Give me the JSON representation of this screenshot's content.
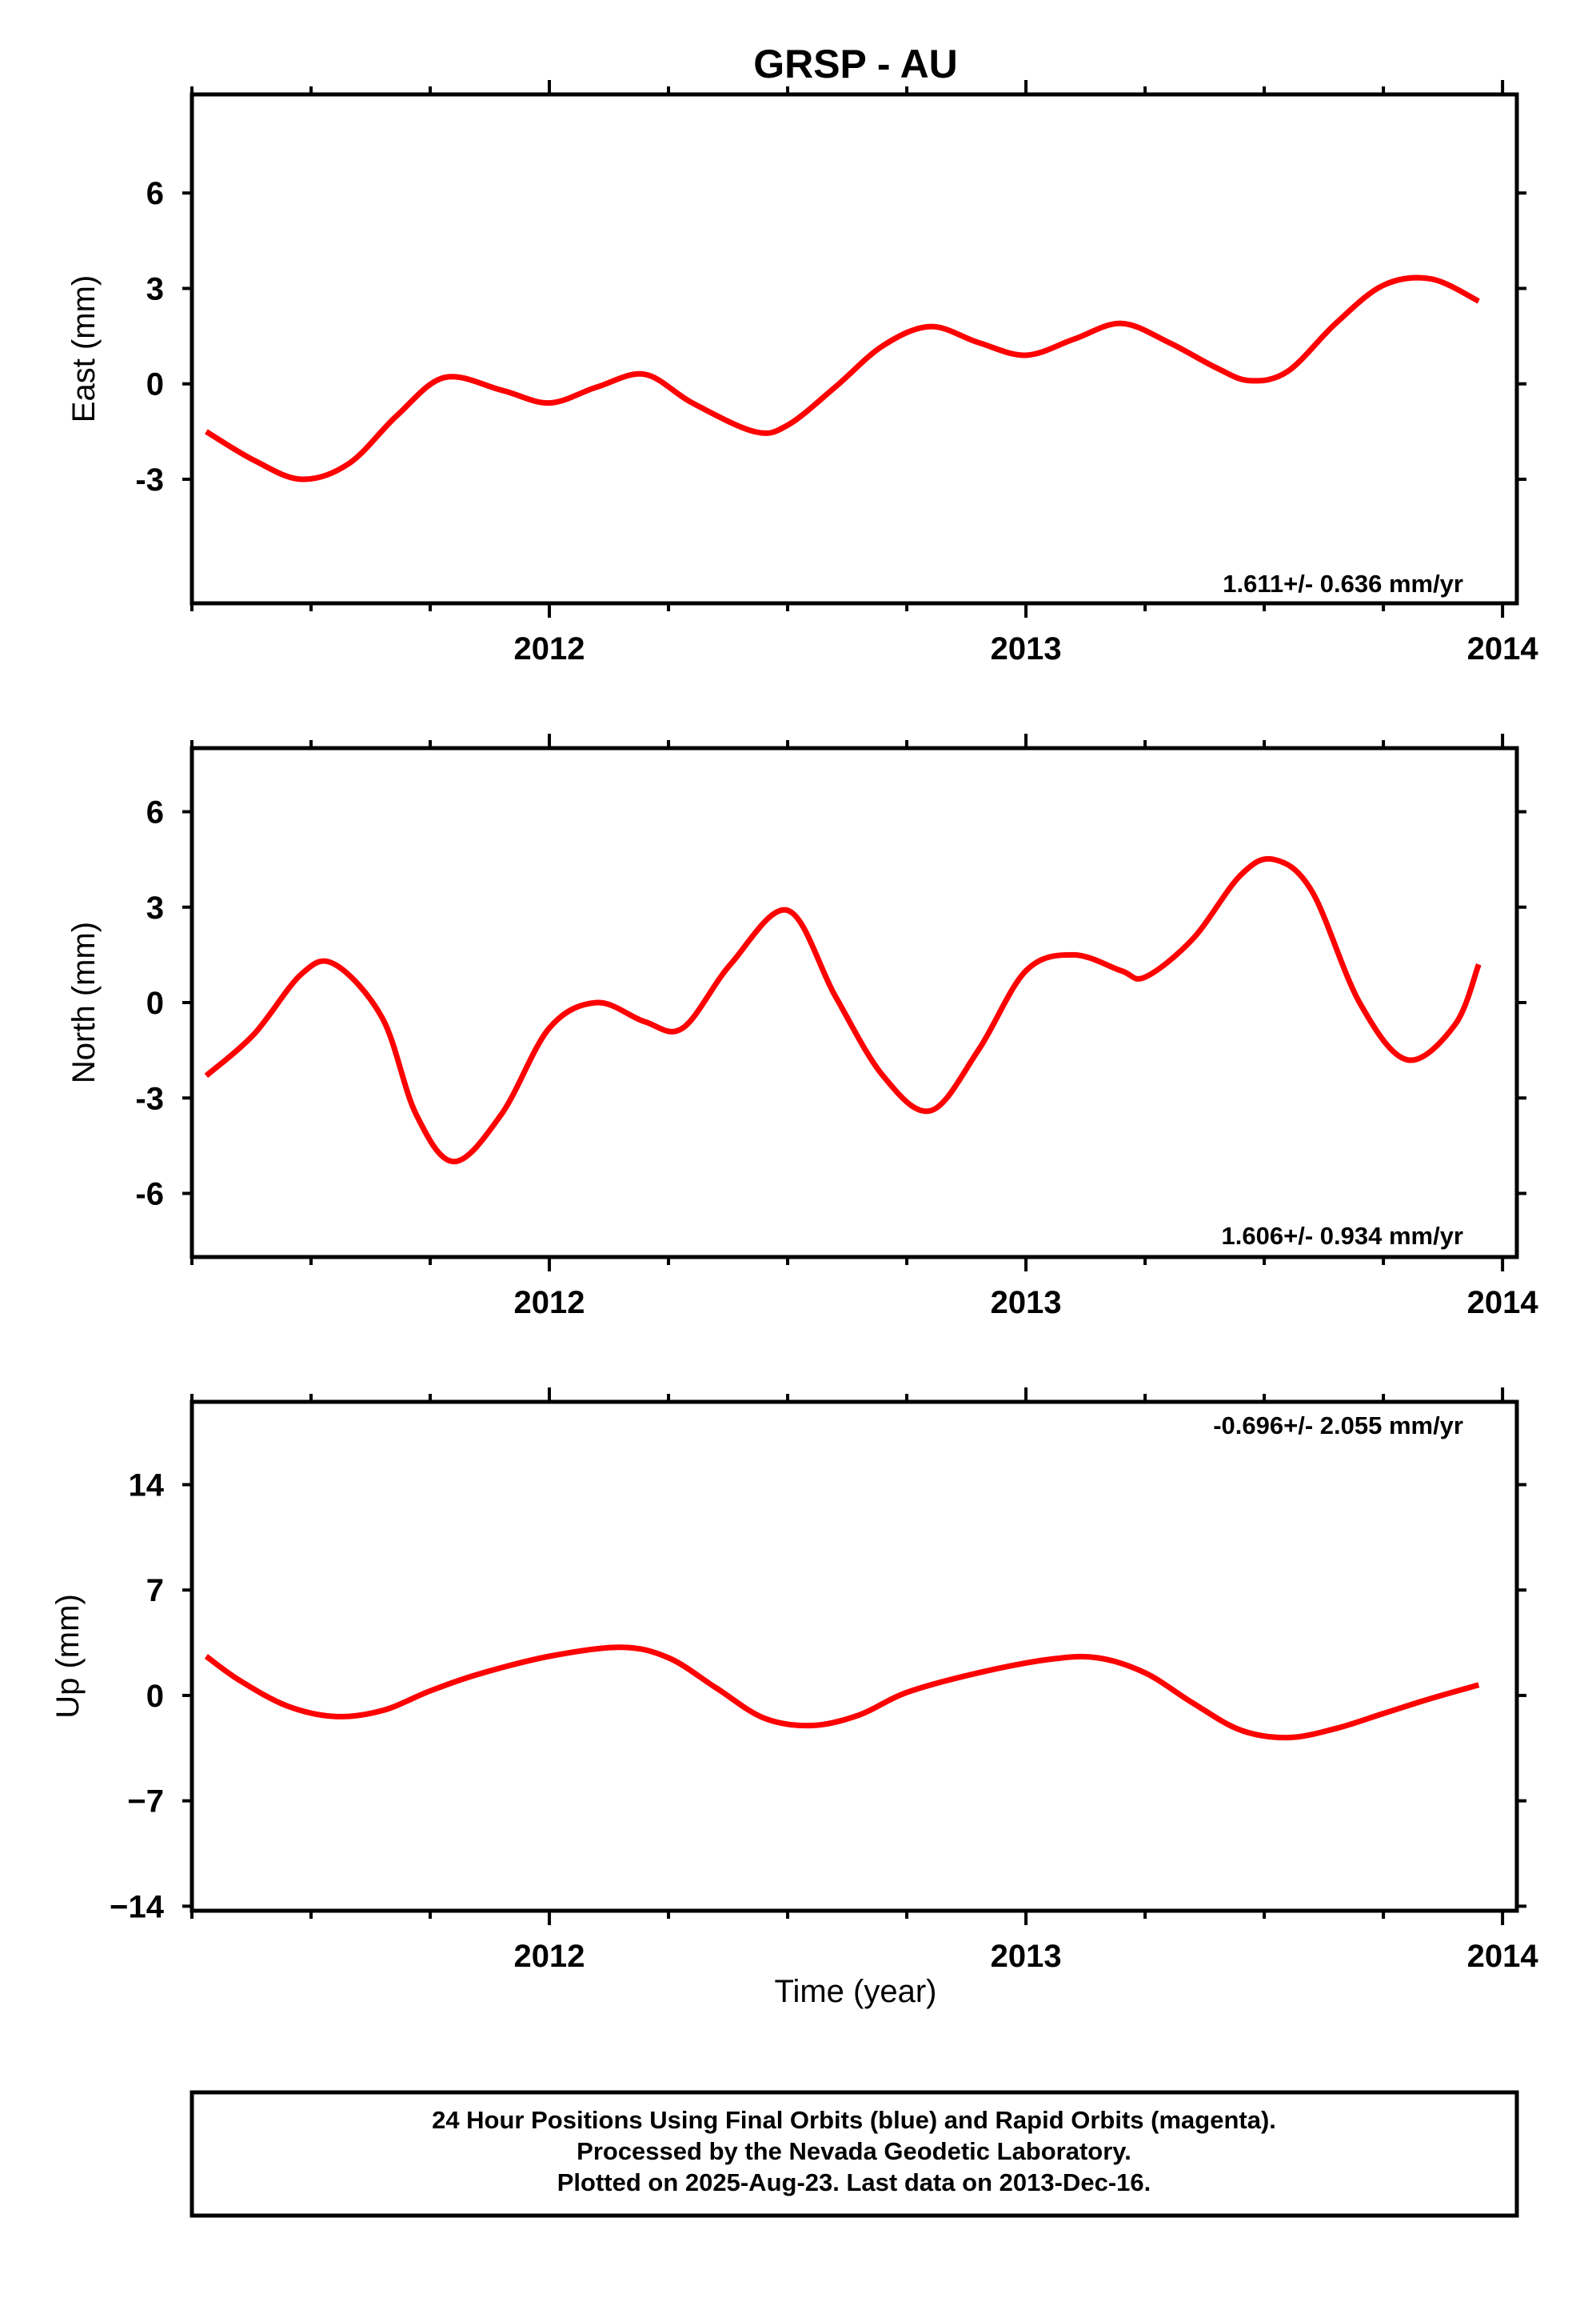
{
  "title": "GRSP - AU",
  "x_axis_label": "Time (year)",
  "footer": {
    "line1": "24 Hour Positions Using Final Orbits (blue) and Rapid Orbits (magenta).",
    "line2": "Processed by the Nevada Geodetic Laboratory.",
    "line3": "Plotted on 2025-Aug-23. Last data on 2013-Dec-16."
  },
  "colors": {
    "points": "#0000ff",
    "fit": "#ff0000",
    "axes": "#000000",
    "background": "#ffffff"
  },
  "chart_data": [
    {
      "type": "scatter",
      "ylabel": "East (mm)",
      "xlim": [
        2011.25,
        2014.03
      ],
      "ylim": [
        -6.9,
        9.1
      ],
      "x_ticks": [
        2012,
        2013,
        2014
      ],
      "x_tick_labels": [
        "2012",
        "2013",
        "2014"
      ],
      "y_ticks": [
        -3,
        0,
        3,
        6
      ],
      "y_tick_labels": [
        "-3",
        "0",
        "3",
        "6"
      ],
      "rate_label": "1.611+/- 0.636 mm/yr",
      "fit_curve": {
        "x": [
          2011.28,
          2011.38,
          2011.48,
          2011.58,
          2011.68,
          2011.78,
          2011.9,
          2012.0,
          2012.1,
          2012.2,
          2012.3,
          2012.43,
          2012.5,
          2012.6,
          2012.7,
          2012.8,
          2012.9,
          2013.0,
          2013.1,
          2013.2,
          2013.3,
          2013.4,
          2013.47,
          2013.55,
          2013.65,
          2013.75,
          2013.85,
          2013.95
        ],
        "y": [
          -1.5,
          -2.4,
          -3.0,
          -2.5,
          -1.0,
          0.2,
          -0.2,
          -0.6,
          -0.1,
          0.3,
          -0.6,
          -1.5,
          -1.3,
          -0.1,
          1.2,
          1.8,
          1.3,
          0.9,
          1.4,
          1.9,
          1.3,
          0.5,
          0.1,
          0.4,
          1.9,
          3.1,
          3.3,
          2.6
        ]
      },
      "series": [
        {
          "x": [],
          "y": []
        }
      ]
    },
    {
      "type": "scatter",
      "ylabel": "North (mm)",
      "xlim": [
        2011.25,
        2014.03
      ],
      "ylim": [
        -8.0,
        8.0
      ],
      "x_ticks": [
        2012,
        2013,
        2014
      ],
      "x_tick_labels": [
        "2012",
        "2013",
        "2014"
      ],
      "y_ticks": [
        -6,
        -3,
        0,
        3,
        6
      ],
      "y_tick_labels": [
        "-6",
        "-3",
        "0",
        "3",
        "6"
      ],
      "rate_label": "1.606+/- 0.934 mm/yr",
      "fit_curve": {
        "x": [
          2011.28,
          2011.38,
          2011.48,
          2011.55,
          2011.65,
          2011.72,
          2011.8,
          2011.9,
          2012.0,
          2012.1,
          2012.2,
          2012.28,
          2012.38,
          2012.5,
          2012.6,
          2012.7,
          2012.8,
          2012.9,
          2013.0,
          2013.1,
          2013.2,
          2013.25,
          2013.35,
          2013.45,
          2013.52,
          2013.6,
          2013.7,
          2013.8,
          2013.9,
          2013.95
        ],
        "y": [
          -2.3,
          -1.0,
          0.9,
          1.2,
          -0.5,
          -3.5,
          -5.0,
          -3.5,
          -0.8,
          0.0,
          -0.6,
          -0.8,
          1.2,
          2.9,
          0.2,
          -2.3,
          -3.4,
          -1.5,
          1.0,
          1.5,
          1.0,
          0.8,
          2.0,
          4.0,
          4.5,
          3.5,
          0.0,
          -1.8,
          -0.7,
          1.2
        ]
      },
      "series": [
        {
          "x": [],
          "y": []
        }
      ]
    },
    {
      "type": "scatter",
      "ylabel": "Up (mm)",
      "xlim": [
        2011.25,
        2014.03
      ],
      "ylim": [
        -14.3,
        19.5
      ],
      "x_ticks": [
        2012,
        2013,
        2014
      ],
      "x_tick_labels": [
        "2012",
        "2013",
        "2014"
      ],
      "y_ticks": [
        -14,
        -7,
        0,
        7,
        14
      ],
      "y_tick_labels": [
        "−14",
        "−7",
        "0",
        "7",
        "14"
      ],
      "rate_label": "-0.696+/- 2.055 mm/yr",
      "fit_curve": {
        "x": [
          2011.28,
          2011.35,
          2011.45,
          2011.55,
          2011.65,
          2011.75,
          2011.85,
          2012.0,
          2012.15,
          2012.25,
          2012.35,
          2012.45,
          2012.55,
          2012.65,
          2012.75,
          2012.9,
          2013.05,
          2013.15,
          2013.25,
          2013.35,
          2013.45,
          2013.55,
          2013.65,
          2013.75,
          2013.85,
          2013.95
        ],
        "y": [
          2.6,
          1.0,
          -0.7,
          -1.4,
          -1.0,
          0.3,
          1.4,
          2.6,
          3.2,
          2.5,
          0.5,
          -1.5,
          -2.0,
          -1.3,
          0.2,
          1.5,
          2.4,
          2.5,
          1.5,
          -0.5,
          -2.3,
          -2.8,
          -2.2,
          -1.2,
          -0.2,
          0.7
        ]
      },
      "series": [
        {
          "x": [],
          "y": []
        }
      ]
    }
  ]
}
